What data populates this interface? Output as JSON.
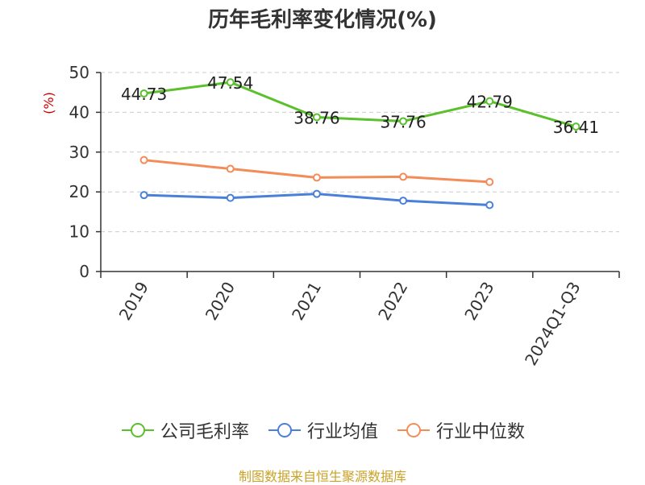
{
  "title": "历年毛利率变化情况(%)",
  "source": "制图数据来自恒生聚源数据库",
  "colors": {
    "company": "#5ac02b",
    "industry_avg": "#4a80d9",
    "industry_median": "#f48c5a",
    "axis": "#333333",
    "grid": "#cccccc",
    "unit": "#cc0000",
    "source": "#c9a227"
  },
  "chart_data": {
    "type": "line",
    "title": "历年毛利率变化情况(%)",
    "ylabel": "(%)",
    "xlabel": "",
    "categories": [
      "2019",
      "2020",
      "2021",
      "2022",
      "2023",
      "2024Q1-Q3"
    ],
    "ylim": [
      0,
      50
    ],
    "yticks": [
      0,
      10,
      20,
      30,
      40,
      50
    ],
    "grid": true,
    "legend_position": "bottom",
    "series": [
      {
        "name": "公司毛利率",
        "color_key": "company",
        "values": [
          44.73,
          47.54,
          38.76,
          37.76,
          42.79,
          36.41
        ],
        "show_labels": true
      },
      {
        "name": "行业均值",
        "color_key": "industry_avg",
        "values": [
          19.2,
          18.5,
          19.5,
          17.8,
          16.7,
          null
        ],
        "show_labels": false
      },
      {
        "name": "行业中位数",
        "color_key": "industry_median",
        "values": [
          28.0,
          25.8,
          23.6,
          23.8,
          22.5,
          null
        ],
        "show_labels": false
      }
    ]
  }
}
